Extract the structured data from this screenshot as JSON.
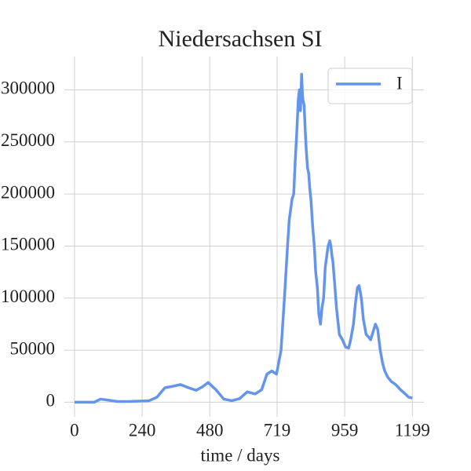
{
  "chart_data": {
    "type": "line",
    "title": "Niedersachsen SI",
    "xlabel": "time / days",
    "x": [
      0,
      40,
      70,
      92,
      120,
      153,
      200,
      265,
      293,
      321,
      343,
      376,
      404,
      432,
      455,
      474,
      502,
      530,
      558,
      586,
      613,
      641,
      664,
      683,
      700,
      717,
      733,
      745,
      756,
      762,
      767,
      772,
      778,
      783,
      789,
      794,
      798,
      802,
      806,
      809,
      811,
      815,
      819,
      823,
      827,
      831,
      835,
      839,
      845,
      851,
      856,
      862,
      867,
      873,
      878,
      884,
      890,
      895,
      900,
      906,
      910,
      914,
      917,
      923,
      930,
      934,
      940,
      951,
      962,
      973,
      980,
      990,
      997,
      1004,
      1010,
      1018,
      1025,
      1035,
      1043,
      1051,
      1060,
      1068,
      1076,
      1085,
      1093,
      1101,
      1112,
      1124,
      1140,
      1157,
      1170,
      1185,
      1199
    ],
    "series": [
      {
        "name": "I",
        "color": "#6495ed",
        "values": [
          0,
          0,
          0,
          3000,
          2000,
          700,
          800,
          1500,
          5000,
          14000,
          15000,
          17000,
          14000,
          11500,
          15000,
          19000,
          12000,
          3000,
          1500,
          3500,
          10000,
          8000,
          12000,
          27000,
          30000,
          27000,
          50000,
          100000,
          150000,
          175000,
          185000,
          195000,
          200000,
          230000,
          260000,
          290000,
          300000,
          280000,
          315000,
          295000,
          290000,
          285000,
          260000,
          240000,
          225000,
          220000,
          205000,
          195000,
          170000,
          150000,
          125000,
          110000,
          85000,
          75000,
          90000,
          100000,
          130000,
          140000,
          150000,
          155000,
          150000,
          140000,
          135000,
          115000,
          90000,
          80000,
          65000,
          60000,
          53000,
          52000,
          60000,
          75000,
          95000,
          110000,
          112000,
          100000,
          80000,
          65000,
          63000,
          60000,
          68000,
          75000,
          70000,
          50000,
          38000,
          30000,
          24000,
          20000,
          17000,
          12000,
          9000,
          5000,
          4000
        ]
      }
    ],
    "xlim": [
      -36,
      1240
    ],
    "ylim": [
      -14000,
      332000
    ],
    "xticks": [
      0,
      240,
      480,
      719,
      959,
      1199
    ],
    "yticks": [
      0,
      50000,
      100000,
      150000,
      200000,
      250000,
      300000
    ],
    "grid": true,
    "legend": "upper right"
  }
}
